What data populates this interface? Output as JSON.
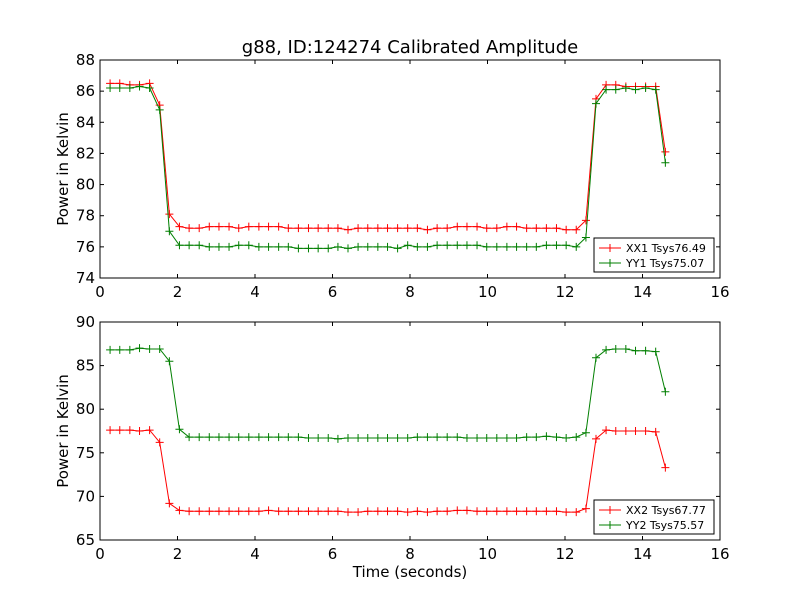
{
  "figure": {
    "title": "g88, ID:124274 Calibrated Amplitude"
  },
  "chart_data": [
    {
      "type": "line",
      "ylabel": "Power in Kelvin",
      "xlabel": "",
      "xlim": [
        0,
        16
      ],
      "ylim": [
        74,
        88
      ],
      "xticks": [
        0,
        2,
        4,
        6,
        8,
        10,
        12,
        14,
        16
      ],
      "yticks": [
        74,
        76,
        78,
        80,
        82,
        84,
        86,
        88
      ],
      "grid": false,
      "legend_position": "lower-right",
      "x": [
        0.26,
        0.51,
        0.77,
        1.02,
        1.28,
        1.54,
        1.79,
        2.05,
        2.3,
        2.56,
        2.82,
        3.07,
        3.33,
        3.58,
        3.84,
        4.1,
        4.35,
        4.61,
        4.86,
        5.12,
        5.38,
        5.63,
        5.89,
        6.14,
        6.4,
        6.66,
        6.91,
        7.17,
        7.42,
        7.68,
        7.94,
        8.19,
        8.45,
        8.7,
        8.96,
        9.22,
        9.47,
        9.73,
        9.98,
        10.24,
        10.5,
        10.75,
        11.01,
        11.26,
        11.52,
        11.78,
        12.03,
        12.29,
        12.54,
        12.8,
        13.06,
        13.31,
        13.57,
        13.82,
        14.08,
        14.34,
        14.59
      ],
      "series": [
        {
          "name": "XX1 Tsys76.49",
          "color": "#ff0000",
          "values": [
            86.5,
            86.5,
            86.4,
            86.4,
            86.5,
            85.1,
            78.1,
            77.3,
            77.2,
            77.2,
            77.3,
            77.3,
            77.3,
            77.2,
            77.3,
            77.3,
            77.3,
            77.3,
            77.2,
            77.2,
            77.2,
            77.2,
            77.2,
            77.2,
            77.1,
            77.2,
            77.2,
            77.2,
            77.2,
            77.2,
            77.2,
            77.2,
            77.1,
            77.2,
            77.2,
            77.3,
            77.3,
            77.3,
            77.2,
            77.2,
            77.3,
            77.3,
            77.2,
            77.2,
            77.2,
            77.2,
            77.1,
            77.1,
            77.7,
            85.5,
            86.4,
            86.4,
            86.3,
            86.3,
            86.3,
            86.3,
            82.1
          ],
          "total_note": ""
        },
        {
          "name": "YY1 Tsys75.07",
          "color": "#007f00",
          "values": [
            86.2,
            86.2,
            86.2,
            86.3,
            86.2,
            84.8,
            77.0,
            76.1,
            76.1,
            76.1,
            76.0,
            76.0,
            76.0,
            76.1,
            76.1,
            76.0,
            76.0,
            76.0,
            76.0,
            75.9,
            75.9,
            75.9,
            75.9,
            76.0,
            75.9,
            76.0,
            76.0,
            76.0,
            76.0,
            75.9,
            76.1,
            76.0,
            76.0,
            76.1,
            76.1,
            76.1,
            76.1,
            76.1,
            76.0,
            76.0,
            76.0,
            76.0,
            76.0,
            76.0,
            76.1,
            76.1,
            76.1,
            76.0,
            76.6,
            85.2,
            86.1,
            86.1,
            86.2,
            86.1,
            86.2,
            86.1,
            81.4
          ]
        }
      ]
    },
    {
      "type": "line",
      "ylabel": "Power in Kelvin",
      "xlabel": "Time (seconds)",
      "xlim": [
        0,
        16
      ],
      "ylim": [
        65,
        90
      ],
      "xticks": [
        0,
        2,
        4,
        6,
        8,
        10,
        12,
        14,
        16
      ],
      "yticks": [
        65,
        70,
        75,
        80,
        85,
        90
      ],
      "grid": false,
      "legend_position": "lower-right",
      "x": [
        0.26,
        0.51,
        0.77,
        1.02,
        1.28,
        1.54,
        1.79,
        2.05,
        2.3,
        2.56,
        2.82,
        3.07,
        3.33,
        3.58,
        3.84,
        4.1,
        4.35,
        4.61,
        4.86,
        5.12,
        5.38,
        5.63,
        5.89,
        6.14,
        6.4,
        6.66,
        6.91,
        7.17,
        7.42,
        7.68,
        7.94,
        8.19,
        8.45,
        8.7,
        8.96,
        9.22,
        9.47,
        9.73,
        9.98,
        10.24,
        10.5,
        10.75,
        11.01,
        11.26,
        11.52,
        11.78,
        12.03,
        12.29,
        12.54,
        12.8,
        13.06,
        13.31,
        13.57,
        13.82,
        14.08,
        14.34,
        14.59
      ],
      "series": [
        {
          "name": "XX2 Tsys67.77",
          "color": "#ff0000",
          "values": [
            77.6,
            77.6,
            77.6,
            77.5,
            77.6,
            76.2,
            69.2,
            68.4,
            68.3,
            68.3,
            68.3,
            68.3,
            68.3,
            68.3,
            68.3,
            68.3,
            68.4,
            68.3,
            68.3,
            68.3,
            68.3,
            68.3,
            68.3,
            68.3,
            68.2,
            68.2,
            68.3,
            68.3,
            68.3,
            68.3,
            68.2,
            68.3,
            68.2,
            68.3,
            68.3,
            68.4,
            68.4,
            68.3,
            68.3,
            68.3,
            68.3,
            68.3,
            68.3,
            68.3,
            68.3,
            68.3,
            68.2,
            68.2,
            68.6,
            76.6,
            77.6,
            77.5,
            77.5,
            77.5,
            77.5,
            77.4,
            73.3
          ]
        },
        {
          "name": "YY2 Tsys75.57",
          "color": "#007f00",
          "values": [
            86.8,
            86.8,
            86.8,
            87.0,
            86.9,
            86.9,
            85.5,
            77.7,
            76.8,
            76.8,
            76.8,
            76.8,
            76.8,
            76.8,
            76.8,
            76.8,
            76.8,
            76.8,
            76.8,
            76.8,
            76.7,
            76.7,
            76.7,
            76.6,
            76.7,
            76.7,
            76.7,
            76.7,
            76.7,
            76.7,
            76.7,
            76.8,
            76.8,
            76.8,
            76.8,
            76.8,
            76.7,
            76.7,
            76.7,
            76.7,
            76.7,
            76.7,
            76.8,
            76.8,
            76.9,
            76.8,
            76.7,
            76.8,
            77.3,
            85.9,
            86.8,
            86.9,
            86.9,
            86.7,
            86.7,
            86.6,
            82.0
          ]
        }
      ]
    }
  ]
}
